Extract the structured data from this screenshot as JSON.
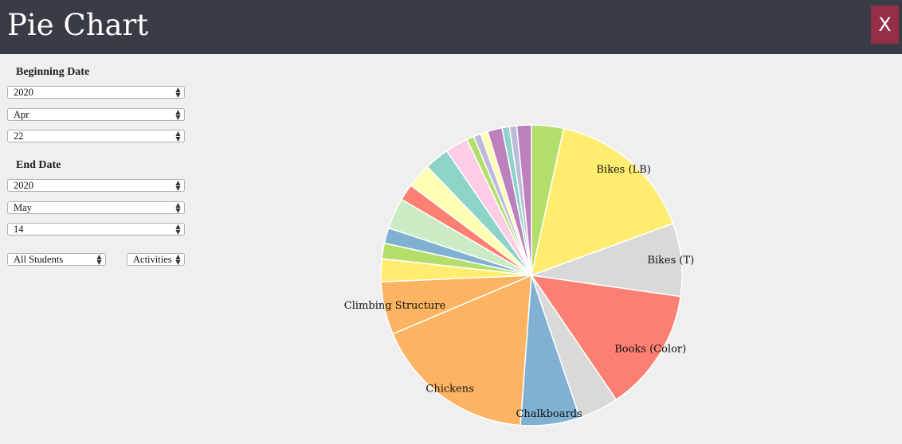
{
  "header": {
    "title": "Pie Chart",
    "close_label": "X"
  },
  "filters": {
    "beginning_label": "Beginning Date",
    "beginning": {
      "year": "2020",
      "month": "Apr",
      "day": "22"
    },
    "end_label": "End Date",
    "end": {
      "year": "2020",
      "month": "May",
      "day": "14"
    },
    "students": "All Students",
    "mode": "Activities"
  },
  "chart_data": {
    "type": "pie",
    "slices": [
      {
        "label": "",
        "value": 3.5,
        "color": "#b3de69"
      },
      {
        "label": "Bikes (LB)",
        "value": 16.3,
        "color": "#ffed6f"
      },
      {
        "label": "Bikes (T)",
        "value": 8.0,
        "color": "#d9d9d9"
      },
      {
        "label": "Books (Color)",
        "value": 13.5,
        "color": "#fb8072"
      },
      {
        "label": "",
        "value": 4.4,
        "color": "#d9d9d9"
      },
      {
        "label": "Chalkboards",
        "value": 6.5,
        "color": "#80b1d3"
      },
      {
        "label": "Chickens",
        "value": 17.8,
        "color": "#fdb462"
      },
      {
        "label": "Climbing Structure",
        "value": 5.8,
        "color": "#fdb462"
      },
      {
        "label": "",
        "value": 2.5,
        "color": "#ffed6f"
      },
      {
        "label": "",
        "value": 1.7,
        "color": "#b3de69"
      },
      {
        "label": "",
        "value": 1.7,
        "color": "#80b1d3"
      },
      {
        "label": "",
        "value": 3.4,
        "color": "#ccebc5"
      },
      {
        "label": "",
        "value": 1.8,
        "color": "#fb8072"
      },
      {
        "label": "",
        "value": 2.7,
        "color": "#ffffb3"
      },
      {
        "label": "",
        "value": 2.7,
        "color": "#8dd3c7"
      },
      {
        "label": "",
        "value": 2.5,
        "color": "#fccde5"
      },
      {
        "label": "",
        "value": 0.8,
        "color": "#b3de69"
      },
      {
        "label": "",
        "value": 0.8,
        "color": "#bebada"
      },
      {
        "label": "",
        "value": 0.8,
        "color": "#ffffb3"
      },
      {
        "label": "",
        "value": 1.6,
        "color": "#bc80bd"
      },
      {
        "label": "",
        "value": 0.8,
        "color": "#8dd3c7"
      },
      {
        "label": "",
        "value": 0.8,
        "color": "#bebada"
      },
      {
        "label": "",
        "value": 1.6,
        "color": "#bc80bd"
      }
    ]
  }
}
